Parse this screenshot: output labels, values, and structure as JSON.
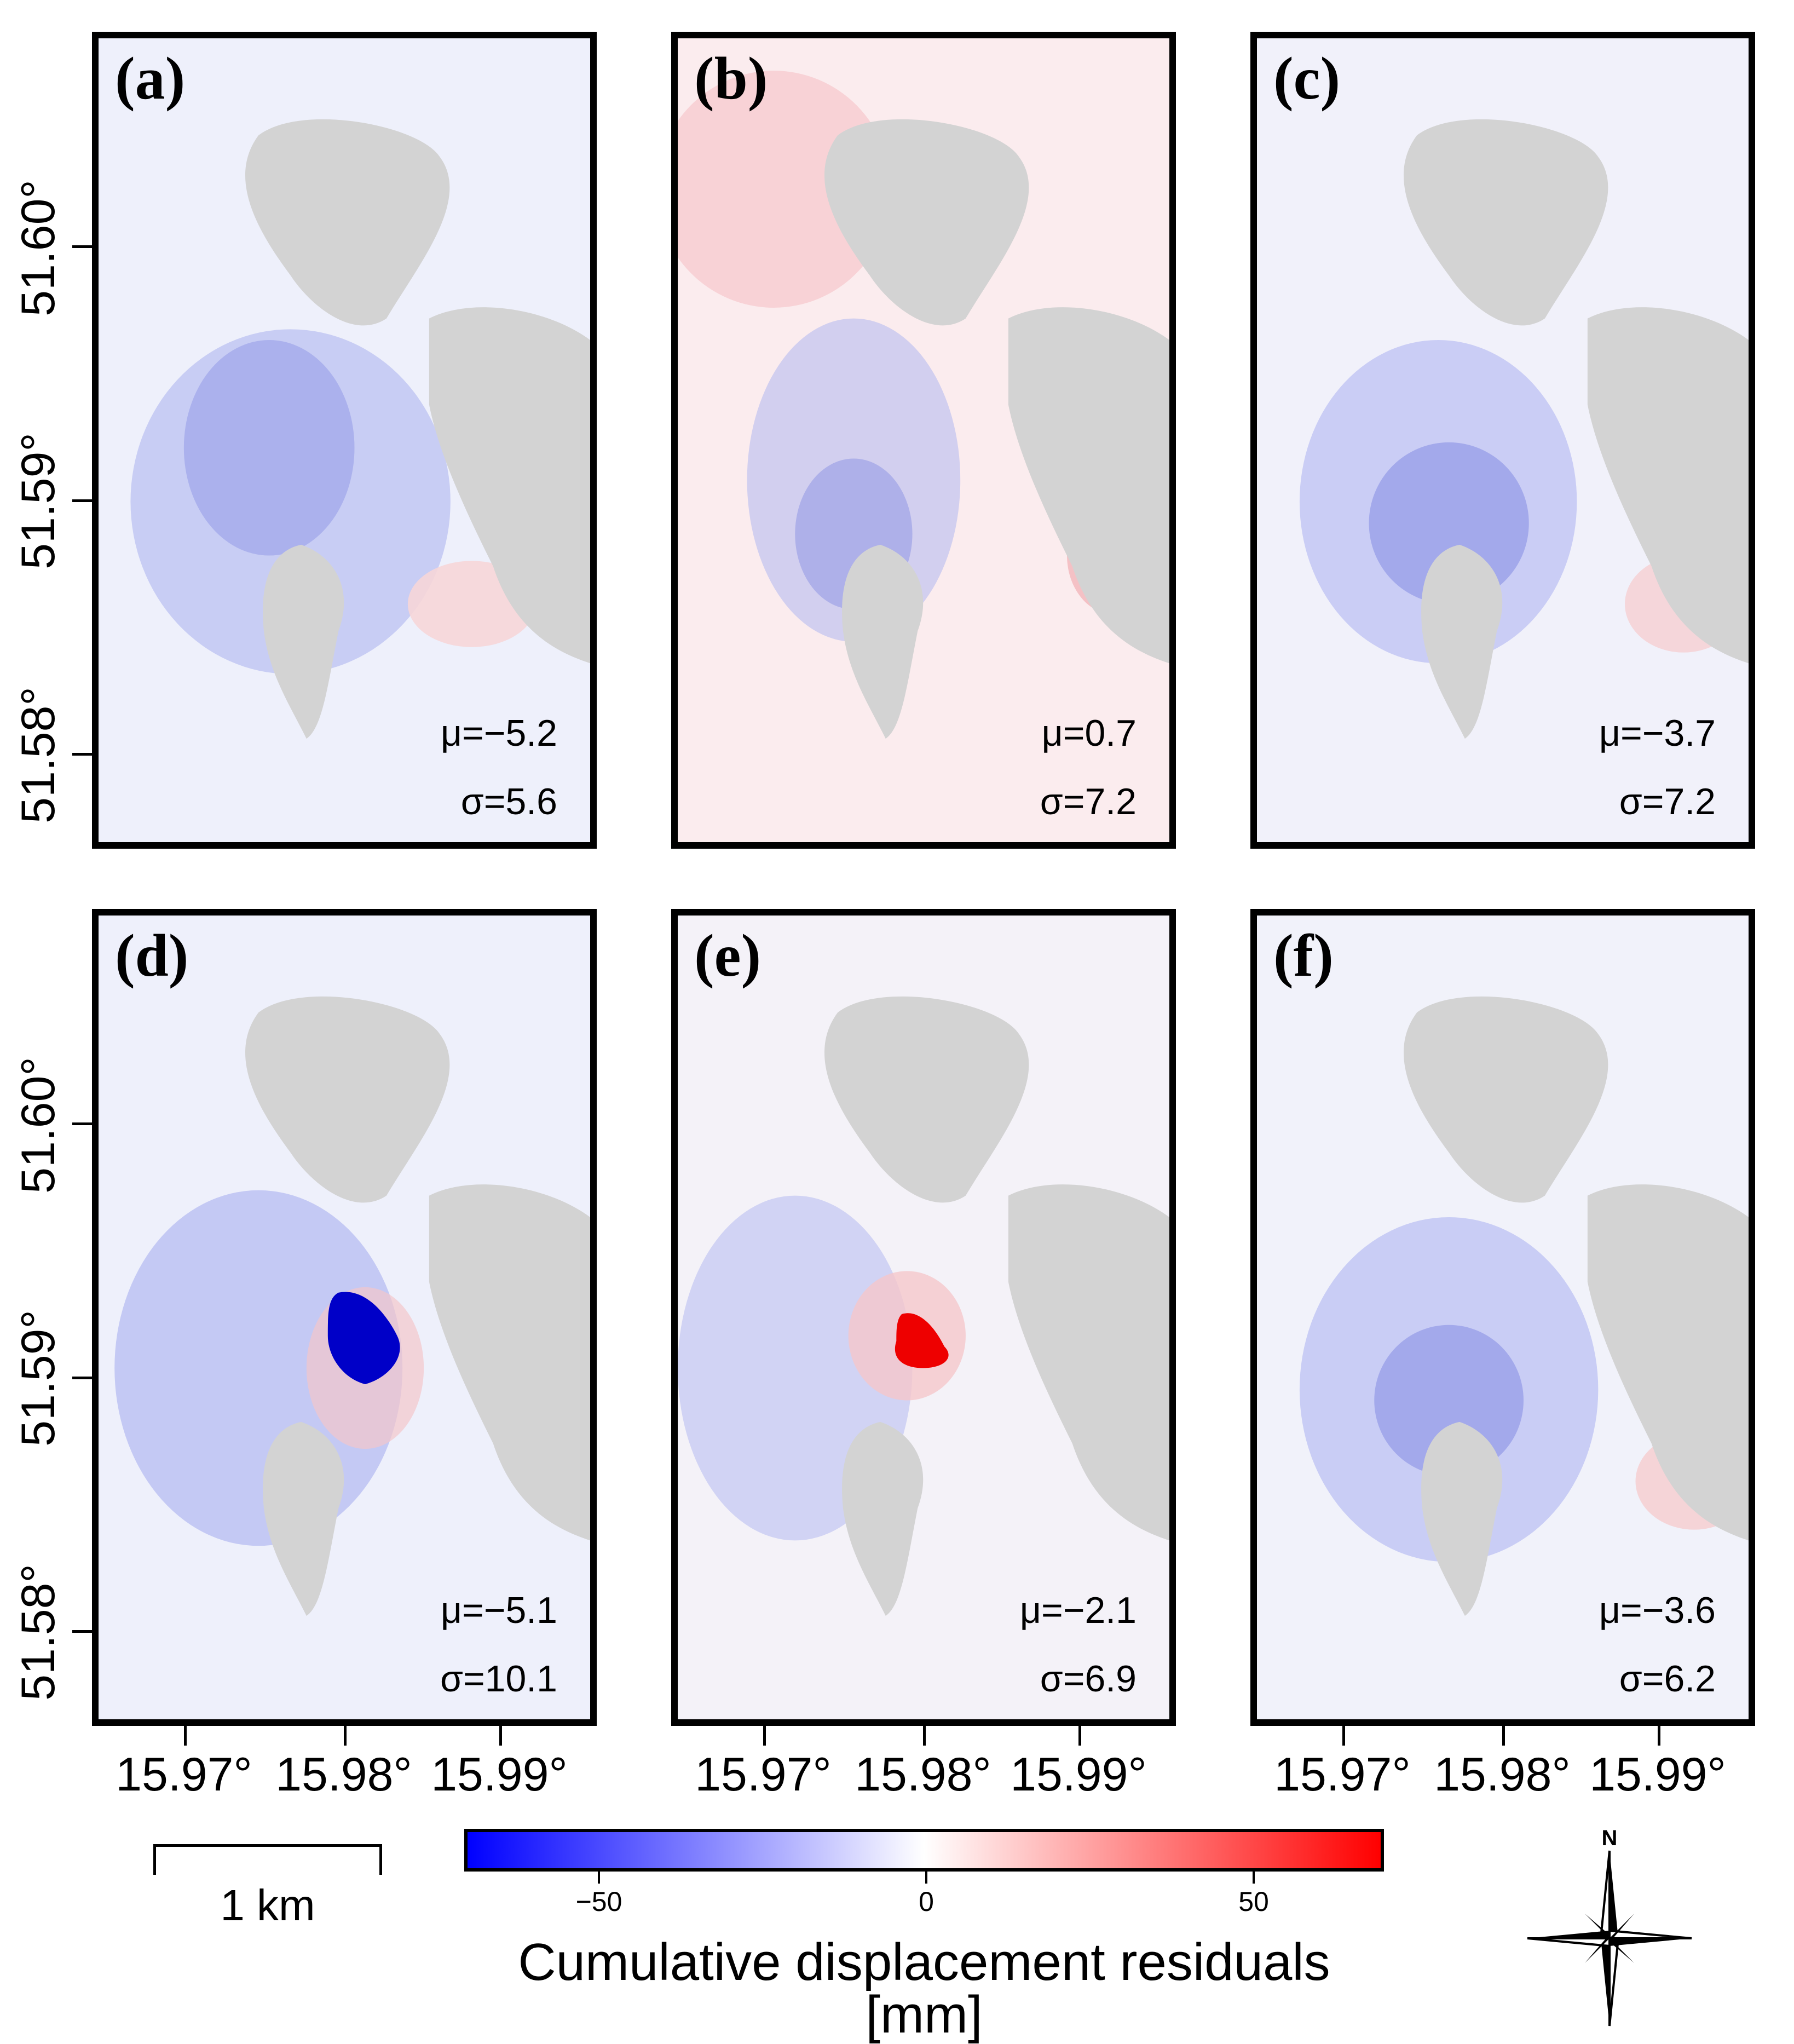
{
  "panels": [
    {
      "label": "(a)",
      "mu": "μ=−5.2",
      "sigma": "σ=5.6",
      "tint": "blue-weak"
    },
    {
      "label": "(b)",
      "mu": "μ=0.7",
      "sigma": "σ=7.2",
      "tint": "red-weak"
    },
    {
      "label": "(c)",
      "mu": "μ=−3.7",
      "sigma": "σ=7.2",
      "tint": "blue-weak"
    },
    {
      "label": "(d)",
      "mu": "μ=−5.1",
      "sigma": "σ=10.1",
      "tint": "blue-strong-anomaly"
    },
    {
      "label": "(e)",
      "mu": "μ=−2.1",
      "sigma": "σ=6.9",
      "tint": "red-anomaly"
    },
    {
      "label": "(f)",
      "mu": "μ=−3.6",
      "sigma": "σ=6.2",
      "tint": "blue-weak"
    }
  ],
  "axes": {
    "lat_labels": [
      "51.60°",
      "51.59°",
      "51.58°"
    ],
    "lon_labels": [
      "15.97°",
      "15.98°",
      "15.99°"
    ]
  },
  "colorbar": {
    "title": "Cumulative displacement residuals [mm]",
    "tick_labels": [
      "−50",
      "0",
      "50"
    ],
    "min_color": "#0000ff",
    "mid_color": "#ffffff",
    "max_color": "#ff0000"
  },
  "scalebar": {
    "label": "1 km"
  },
  "compass": {
    "north_label": "N"
  },
  "colors": {
    "mask": "#d3d3d3",
    "frame": "#000000"
  }
}
